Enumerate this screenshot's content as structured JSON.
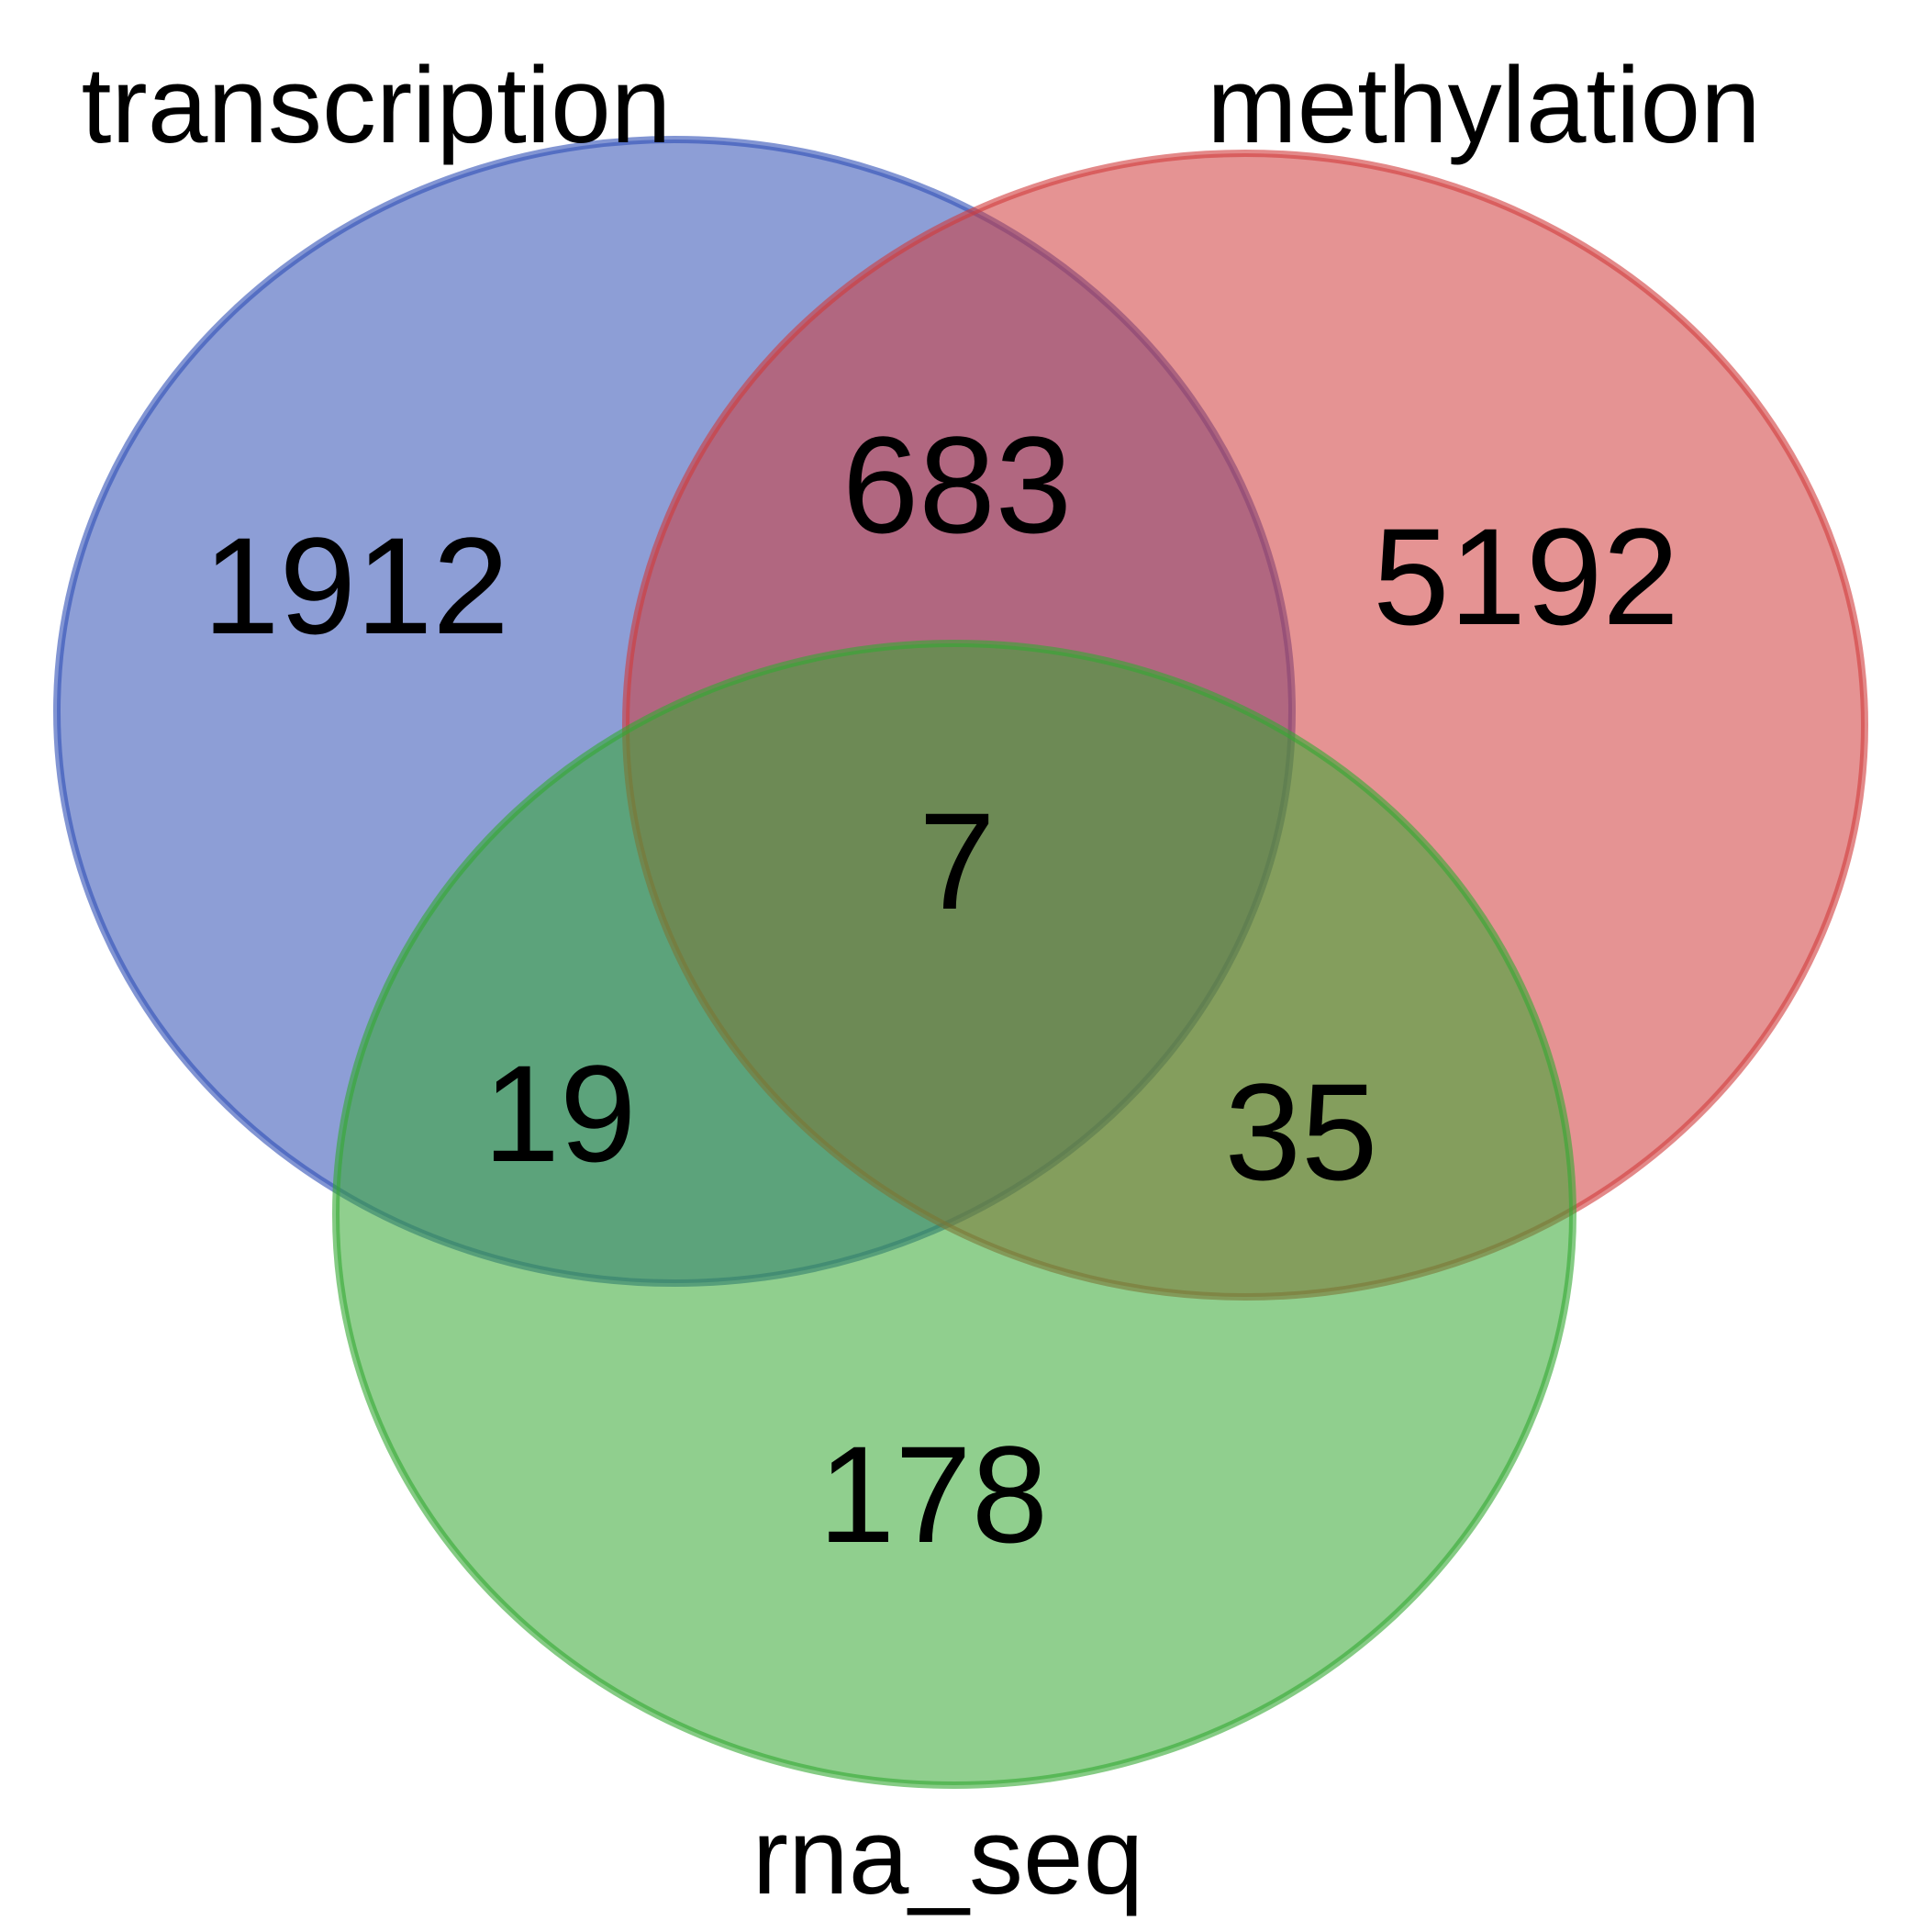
{
  "sets": [
    {
      "key": "transcription",
      "label": "transcription",
      "color": "#2f4fb5"
    },
    {
      "key": "methylation",
      "label": "methylation",
      "color": "#d03a3a"
    },
    {
      "key": "rna_seq",
      "label": "rna_seq",
      "color": "#34a832"
    }
  ],
  "regions": {
    "transcription_only": "1912",
    "methylation_only": "5192",
    "rna_seq_only": "178",
    "transcription_methylation": "683",
    "transcription_rna_seq": "19",
    "methylation_rna_seq": "35",
    "all_three": "7"
  }
}
